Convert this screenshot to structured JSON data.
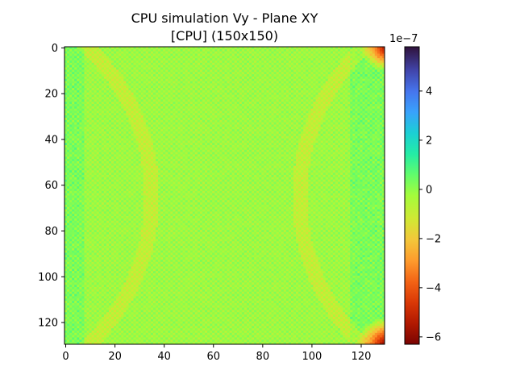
{
  "chart_data": {
    "type": "heatmap",
    "title_line1": "CPU simulation Vy - Plane XY",
    "title_line2": "[CPU] (150x150)",
    "grid": false,
    "x_range": [
      0,
      130
    ],
    "y_range": [
      0,
      130
    ],
    "x_ticks": [
      "0",
      "20",
      "40",
      "60",
      "80",
      "100",
      "120"
    ],
    "y_ticks": [
      "0",
      "20",
      "40",
      "60",
      "80",
      "100",
      "120"
    ],
    "colorbar": {
      "colormap": "turbo",
      "vmin": -6.3e-07,
      "vmax": 5.8e-07,
      "multiplier_label": "1e−7",
      "ticks": [
        4,
        2,
        0,
        -2,
        -4,
        -6
      ],
      "tick_labels": [
        "4",
        "2",
        "0",
        "−2",
        "−4",
        "−6"
      ]
    },
    "field_description_values": {
      "background_mean": -2e-08,
      "edge_columns_mean": 5e-08,
      "bottom_right_corner_min": -6.3e-07,
      "top_right_corner_min": -5.5e-07
    }
  }
}
